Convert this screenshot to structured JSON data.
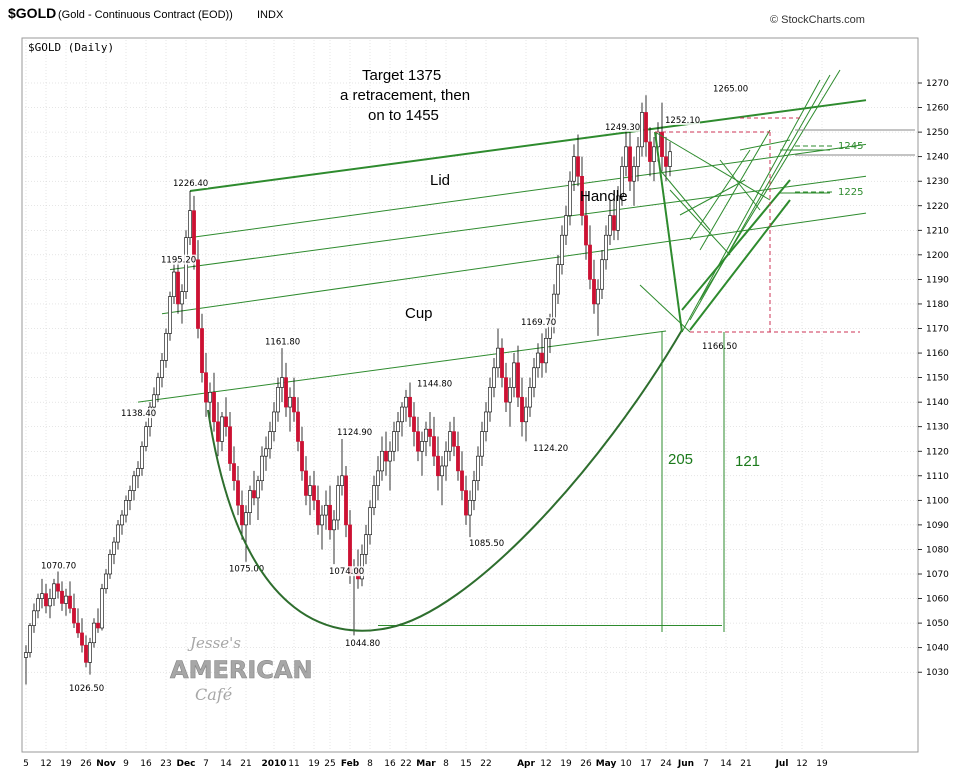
{
  "header": {
    "symbol": "$GOLD",
    "description": "(Gold - Continuous Contract (EOD))",
    "exchange": "INDX",
    "copyright": "© StockCharts.com"
  },
  "panel_label": "$GOLD (Daily)",
  "watermark": {
    "line1": "Jesse's",
    "line2": "AMERICAN",
    "line3": "Café"
  },
  "colors": {
    "up": "#ffffff",
    "down": "#cc1133",
    "wick": "#000000",
    "trend": "#2e8b2e",
    "dashed": "#cc3355",
    "grid": "#cccccc"
  },
  "annotations": {
    "target_line1": "Target 1375",
    "target_line2": "a retracement,  then",
    "target_line3": "on  to 1455",
    "lid": "Lid",
    "handle": "Handle",
    "cup": "Cup",
    "m205": "205",
    "m121": "121",
    "lvl1245": "1245",
    "lvl1225": "1225"
  },
  "chart_data": {
    "type": "candlestick",
    "title": "$GOLD (Gold - Continuous Contract (EOD))",
    "period": "Daily",
    "ylim": [
      1020,
      1275
    ],
    "y_ticks": [
      1030,
      1040,
      1050,
      1060,
      1070,
      1080,
      1090,
      1100,
      1110,
      1120,
      1130,
      1140,
      1150,
      1160,
      1170,
      1180,
      1190,
      1200,
      1210,
      1220,
      1230,
      1240,
      1250,
      1260,
      1270
    ],
    "x_ticks": [
      {
        "label": "5",
        "i": 0
      },
      {
        "label": "12",
        "i": 5
      },
      {
        "label": "19",
        "i": 10
      },
      {
        "label": "26",
        "i": 15
      },
      {
        "label": "Nov",
        "i": 20,
        "bold": true
      },
      {
        "label": "9",
        "i": 25
      },
      {
        "label": "16",
        "i": 30
      },
      {
        "label": "23",
        "i": 35
      },
      {
        "label": "Dec",
        "i": 40,
        "bold": true
      },
      {
        "label": "7",
        "i": 45
      },
      {
        "label": "14",
        "i": 50
      },
      {
        "label": "21",
        "i": 55
      },
      {
        "label": "2010",
        "i": 62,
        "bold": true
      },
      {
        "label": "11",
        "i": 67
      },
      {
        "label": "19",
        "i": 72
      },
      {
        "label": "25",
        "i": 76
      },
      {
        "label": "Feb",
        "i": 81,
        "bold": true
      },
      {
        "label": "8",
        "i": 86
      },
      {
        "label": "16",
        "i": 91
      },
      {
        "label": "22",
        "i": 95
      },
      {
        "label": "Mar",
        "i": 100,
        "bold": true
      },
      {
        "label": "8",
        "i": 105
      },
      {
        "label": "15",
        "i": 110
      },
      {
        "label": "22",
        "i": 115
      },
      {
        "label": "Apr",
        "i": 125,
        "bold": true
      },
      {
        "label": "12",
        "i": 130
      },
      {
        "label": "19",
        "i": 135
      },
      {
        "label": "26",
        "i": 140
      },
      {
        "label": "May",
        "i": 145,
        "bold": true
      },
      {
        "label": "10",
        "i": 150
      },
      {
        "label": "17",
        "i": 155
      },
      {
        "label": "24",
        "i": 160
      },
      {
        "label": "Jun",
        "i": 165,
        "bold": true
      },
      {
        "label": "7",
        "i": 170
      },
      {
        "label": "14",
        "i": 175
      },
      {
        "label": "21",
        "i": 180
      },
      {
        "label": "Jul",
        "i": 189,
        "bold": true
      },
      {
        "label": "12",
        "i": 194
      },
      {
        "label": "19",
        "i": 199
      }
    ],
    "candles": [
      [
        1036,
        1041,
        1025,
        1038
      ],
      [
        1038,
        1050,
        1036,
        1049
      ],
      [
        1049,
        1058,
        1046,
        1055
      ],
      [
        1055,
        1062,
        1052,
        1060
      ],
      [
        1060,
        1068,
        1056,
        1062
      ],
      [
        1062,
        1066,
        1054,
        1057
      ],
      [
        1057,
        1064,
        1052,
        1060
      ],
      [
        1060,
        1068,
        1057,
        1066
      ],
      [
        1066,
        1071,
        1060,
        1063
      ],
      [
        1063,
        1067,
        1055,
        1058
      ],
      [
        1058,
        1064,
        1053,
        1061
      ],
      [
        1061,
        1067,
        1054,
        1056
      ],
      [
        1056,
        1062,
        1048,
        1050
      ],
      [
        1050,
        1056,
        1044,
        1046
      ],
      [
        1046,
        1052,
        1038,
        1041
      ],
      [
        1041,
        1045,
        1032,
        1034
      ],
      [
        1034,
        1044,
        1029,
        1042
      ],
      [
        1042,
        1052,
        1040,
        1050
      ],
      [
        1050,
        1056,
        1046,
        1048
      ],
      [
        1048,
        1066,
        1047,
        1064
      ],
      [
        1064,
        1072,
        1062,
        1070
      ],
      [
        1070,
        1080,
        1068,
        1078
      ],
      [
        1078,
        1085,
        1074,
        1083
      ],
      [
        1083,
        1092,
        1080,
        1090
      ],
      [
        1090,
        1096,
        1086,
        1094
      ],
      [
        1094,
        1102,
        1091,
        1100
      ],
      [
        1100,
        1106,
        1096,
        1104
      ],
      [
        1104,
        1112,
        1100,
        1110
      ],
      [
        1110,
        1116,
        1105,
        1113
      ],
      [
        1113,
        1124,
        1110,
        1122
      ],
      [
        1122,
        1132,
        1120,
        1130
      ],
      [
        1130,
        1140,
        1126,
        1138
      ],
      [
        1138,
        1146,
        1134,
        1143
      ],
      [
        1143,
        1152,
        1140,
        1150
      ],
      [
        1150,
        1160,
        1146,
        1157
      ],
      [
        1157,
        1170,
        1154,
        1168
      ],
      [
        1168,
        1185,
        1165,
        1183
      ],
      [
        1183,
        1196,
        1180,
        1193
      ],
      [
        1193,
        1198,
        1176,
        1180
      ],
      [
        1180,
        1188,
        1172,
        1185
      ],
      [
        1185,
        1210,
        1182,
        1207
      ],
      [
        1207,
        1226,
        1204,
        1218
      ],
      [
        1218,
        1224,
        1194,
        1198
      ],
      [
        1198,
        1206,
        1166,
        1170
      ],
      [
        1170,
        1176,
        1148,
        1152
      ],
      [
        1152,
        1160,
        1134,
        1140
      ],
      [
        1140,
        1148,
        1130,
        1144
      ],
      [
        1144,
        1152,
        1128,
        1132
      ],
      [
        1132,
        1140,
        1118,
        1124
      ],
      [
        1124,
        1136,
        1120,
        1134
      ],
      [
        1134,
        1142,
        1126,
        1130
      ],
      [
        1130,
        1136,
        1112,
        1115
      ],
      [
        1115,
        1122,
        1104,
        1108
      ],
      [
        1108,
        1114,
        1094,
        1098
      ],
      [
        1098,
        1104,
        1084,
        1090
      ],
      [
        1090,
        1098,
        1075,
        1095
      ],
      [
        1095,
        1106,
        1090,
        1104
      ],
      [
        1104,
        1112,
        1098,
        1101
      ],
      [
        1101,
        1110,
        1092,
        1108
      ],
      [
        1108,
        1122,
        1104,
        1118
      ],
      [
        1118,
        1126,
        1112,
        1121
      ],
      [
        1121,
        1132,
        1117,
        1128
      ],
      [
        1128,
        1140,
        1124,
        1136
      ],
      [
        1136,
        1150,
        1132,
        1146
      ],
      [
        1146,
        1162,
        1140,
        1150
      ],
      [
        1150,
        1156,
        1134,
        1138
      ],
      [
        1138,
        1146,
        1128,
        1142
      ],
      [
        1142,
        1150,
        1132,
        1136
      ],
      [
        1136,
        1142,
        1120,
        1124
      ],
      [
        1124,
        1130,
        1108,
        1112
      ],
      [
        1112,
        1118,
        1098,
        1102
      ],
      [
        1102,
        1110,
        1094,
        1106
      ],
      [
        1106,
        1112,
        1096,
        1100
      ],
      [
        1100,
        1106,
        1086,
        1090
      ],
      [
        1090,
        1098,
        1080,
        1094
      ],
      [
        1094,
        1104,
        1088,
        1098
      ],
      [
        1098,
        1106,
        1084,
        1088
      ],
      [
        1088,
        1096,
        1074,
        1092
      ],
      [
        1092,
        1110,
        1088,
        1106
      ],
      [
        1106,
        1125,
        1102,
        1110
      ],
      [
        1110,
        1114,
        1085,
        1090
      ],
      [
        1090,
        1096,
        1066,
        1070
      ],
      [
        1070,
        1076,
        1045,
        1072
      ],
      [
        1072,
        1080,
        1064,
        1068
      ],
      [
        1068,
        1082,
        1065,
        1078
      ],
      [
        1078,
        1090,
        1074,
        1086
      ],
      [
        1086,
        1100,
        1082,
        1097
      ],
      [
        1097,
        1110,
        1094,
        1106
      ],
      [
        1106,
        1118,
        1100,
        1112
      ],
      [
        1112,
        1126,
        1108,
        1120
      ],
      [
        1120,
        1128,
        1110,
        1116
      ],
      [
        1116,
        1124,
        1104,
        1120
      ],
      [
        1120,
        1132,
        1116,
        1128
      ],
      [
        1128,
        1136,
        1120,
        1132
      ],
      [
        1132,
        1140,
        1126,
        1138
      ],
      [
        1138,
        1145,
        1132,
        1142
      ],
      [
        1142,
        1148,
        1130,
        1134
      ],
      [
        1134,
        1140,
        1122,
        1128
      ],
      [
        1128,
        1134,
        1116,
        1120
      ],
      [
        1120,
        1128,
        1110,
        1124
      ],
      [
        1124,
        1132,
        1118,
        1129
      ],
      [
        1129,
        1136,
        1122,
        1126
      ],
      [
        1126,
        1134,
        1114,
        1118
      ],
      [
        1118,
        1126,
        1104,
        1110
      ],
      [
        1110,
        1118,
        1098,
        1114
      ],
      [
        1114,
        1124,
        1108,
        1120
      ],
      [
        1120,
        1132,
        1116,
        1128
      ],
      [
        1128,
        1134,
        1118,
        1122
      ],
      [
        1122,
        1128,
        1108,
        1112
      ],
      [
        1112,
        1120,
        1100,
        1104
      ],
      [
        1104,
        1110,
        1090,
        1094
      ],
      [
        1094,
        1104,
        1085,
        1100
      ],
      [
        1100,
        1112,
        1096,
        1108
      ],
      [
        1108,
        1122,
        1104,
        1118
      ],
      [
        1118,
        1132,
        1114,
        1128
      ],
      [
        1128,
        1140,
        1124,
        1136
      ],
      [
        1136,
        1150,
        1132,
        1146
      ],
      [
        1146,
        1158,
        1142,
        1154
      ],
      [
        1154,
        1170,
        1150,
        1162
      ],
      [
        1162,
        1166,
        1146,
        1150
      ],
      [
        1150,
        1156,
        1136,
        1140
      ],
      [
        1140,
        1150,
        1130,
        1146
      ],
      [
        1146,
        1160,
        1142,
        1156
      ],
      [
        1156,
        1163,
        1138,
        1142
      ],
      [
        1142,
        1150,
        1126,
        1132
      ],
      [
        1132,
        1142,
        1124,
        1138
      ],
      [
        1138,
        1150,
        1134,
        1146
      ],
      [
        1146,
        1158,
        1142,
        1154
      ],
      [
        1154,
        1164,
        1150,
        1160
      ],
      [
        1160,
        1168,
        1150,
        1156
      ],
      [
        1156,
        1170,
        1152,
        1166
      ],
      [
        1166,
        1176,
        1160,
        1172
      ],
      [
        1172,
        1188,
        1168,
        1184
      ],
      [
        1184,
        1200,
        1180,
        1196
      ],
      [
        1196,
        1212,
        1192,
        1208
      ],
      [
        1208,
        1220,
        1204,
        1216
      ],
      [
        1216,
        1234,
        1212,
        1230
      ],
      [
        1230,
        1245,
        1226,
        1240
      ],
      [
        1240,
        1249,
        1228,
        1232
      ],
      [
        1232,
        1240,
        1212,
        1216
      ],
      [
        1216,
        1226,
        1198,
        1204
      ],
      [
        1204,
        1212,
        1186,
        1190
      ],
      [
        1190,
        1198,
        1176,
        1180
      ],
      [
        1180,
        1190,
        1167,
        1186
      ],
      [
        1186,
        1202,
        1182,
        1198
      ],
      [
        1198,
        1212,
        1194,
        1208
      ],
      [
        1208,
        1222,
        1204,
        1216
      ],
      [
        1216,
        1226,
        1206,
        1210
      ],
      [
        1210,
        1228,
        1206,
        1224
      ],
      [
        1224,
        1240,
        1220,
        1236
      ],
      [
        1236,
        1252,
        1232,
        1244
      ],
      [
        1244,
        1250,
        1226,
        1230
      ],
      [
        1230,
        1240,
        1220,
        1236
      ],
      [
        1236,
        1248,
        1230,
        1244
      ],
      [
        1244,
        1262,
        1240,
        1258
      ],
      [
        1258,
        1265,
        1240,
        1246
      ],
      [
        1246,
        1252,
        1232,
        1238
      ],
      [
        1238,
        1248,
        1230,
        1244
      ],
      [
        1244,
        1254,
        1238,
        1250
      ],
      [
        1250,
        1262,
        1234,
        1240
      ],
      [
        1240,
        1248,
        1230,
        1236
      ],
      [
        1236,
        1246,
        1232,
        1242
      ]
    ],
    "price_labels": [
      {
        "text": "1070.70",
        "i": 8,
        "price": 1070.7,
        "pos": "above"
      },
      {
        "text": "1026.50",
        "i": 15,
        "price": 1026.5,
        "pos": "below"
      },
      {
        "text": "1138.40",
        "i": 28,
        "price": 1138.4,
        "pos": "below"
      },
      {
        "text": "1226.40",
        "i": 41,
        "price": 1226.4,
        "pos": "above"
      },
      {
        "text": "1195.20",
        "i": 38,
        "price": 1195.2,
        "pos": "above"
      },
      {
        "text": "1075.00",
        "i": 55,
        "price": 1075.0,
        "pos": "below"
      },
      {
        "text": "1161.80",
        "i": 64,
        "price": 1161.8,
        "pos": "above"
      },
      {
        "text": "1124.90",
        "i": 82,
        "price": 1124.9,
        "pos": "above"
      },
      {
        "text": "1074.00",
        "i": 80,
        "price": 1074.0,
        "pos": "below"
      },
      {
        "text": "1044.80",
        "i": 84,
        "price": 1044.8,
        "pos": "below"
      },
      {
        "text": "1144.80",
        "i": 102,
        "price": 1144.8,
        "pos": "above"
      },
      {
        "text": "1085.50",
        "i": 115,
        "price": 1085.5,
        "pos": "below"
      },
      {
        "text": "1169.70",
        "i": 128,
        "price": 1169.7,
        "pos": "above"
      },
      {
        "text": "1124.20",
        "i": 131,
        "price": 1124.2,
        "pos": "below"
      },
      {
        "text": "1249.30",
        "i": 149,
        "price": 1249.3,
        "pos": "above"
      },
      {
        "text": "1166.50",
        "i": 168,
        "price": 1166.5,
        "pos": "right"
      },
      {
        "text": "1252.10",
        "i": 164,
        "price": 1252.1,
        "pos": "above"
      },
      {
        "text": "1265.00",
        "i": 176,
        "price": 1265.0,
        "pos": "above"
      }
    ],
    "trendlines": [
      {
        "type": "solid",
        "pts": [
          [
            41,
            1226
          ],
          [
            210,
            1263
          ]
        ],
        "w": 2
      },
      {
        "type": "solid",
        "pts": [
          [
            41,
            1207
          ],
          [
            210,
            1245
          ]
        ],
        "w": 1
      },
      {
        "type": "solid",
        "pts": [
          [
            36,
            1194
          ],
          [
            210,
            1232
          ]
        ],
        "w": 1
      },
      {
        "type": "solid",
        "pts": [
          [
            34,
            1176
          ],
          [
            210,
            1217
          ]
        ],
        "w": 1
      },
      {
        "type": "solid",
        "pts": [
          [
            28,
            1140
          ],
          [
            160,
            1169
          ]
        ],
        "w": 1
      },
      {
        "type": "solid",
        "pts": [
          [
            88,
            1049
          ],
          [
            174,
            1049
          ]
        ],
        "w": 1
      }
    ]
  }
}
